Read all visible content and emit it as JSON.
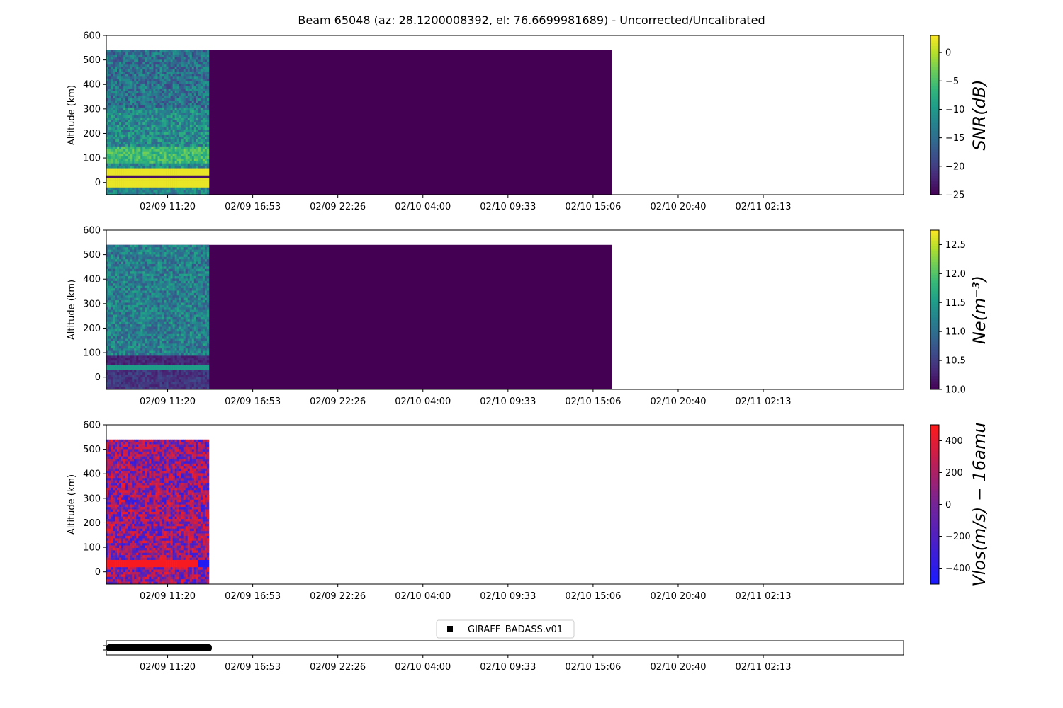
{
  "chart_data": {
    "type": "heatmap",
    "title": "Beam 65048 (az: 28.1200008392, el: 76.6699981689) - Uncorrected/Uncalibrated",
    "x_ticks": [
      "02/09 11:20",
      "02/09 16:53",
      "02/09 22:26",
      "02/10 04:00",
      "02/10 09:33",
      "02/10 15:06",
      "02/10 20:40",
      "02/11 02:13"
    ],
    "x_range_hours": [
      0,
      52
    ],
    "data_extent": {
      "start_hours": 0,
      "end_hours": 33,
      "measured_end_hours": 6.7,
      "altitude_km": [
        -50,
        540
      ]
    },
    "panels": [
      {
        "name": "snr",
        "ylabel": "Altitude (km)",
        "ylim": [
          -50,
          600
        ],
        "yticks": [
          "0",
          "100",
          "200",
          "300",
          "400",
          "500",
          "600"
        ],
        "colorbar_label": "SNR(dB)",
        "colorbar_range": [
          -25,
          3
        ],
        "colorbar_ticks": [
          "0",
          "−5",
          "−10",
          "−15",
          "−20",
          "−25"
        ],
        "colormap": "viridis"
      },
      {
        "name": "ne",
        "ylabel": "Altitude (km)",
        "ylim": [
          -50,
          600
        ],
        "yticks": [
          "0",
          "100",
          "200",
          "300",
          "400",
          "500",
          "600"
        ],
        "colorbar_label": "Ne(m⁻³)",
        "colorbar_range": [
          10.0,
          12.75
        ],
        "colorbar_ticks": [
          "12.5",
          "12.0",
          "11.5",
          "11.0",
          "10.5",
          "10.0"
        ],
        "colormap": "viridis"
      },
      {
        "name": "vlos",
        "ylabel": "Altitude (km)",
        "ylim": [
          -50,
          600
        ],
        "yticks": [
          "0",
          "100",
          "200",
          "300",
          "400",
          "500",
          "600"
        ],
        "colorbar_label": "Vlos(m/s) − 16amu",
        "colorbar_range": [
          -500,
          500
        ],
        "colorbar_ticks": [
          "400",
          "200",
          "0",
          "−200",
          "−400"
        ],
        "colormap": "bwr"
      }
    ],
    "legend": {
      "entries": [
        "GIRAFF_BADASS.v01"
      ],
      "placement": "above bottom strip",
      "marker_color": "#000000"
    },
    "colors": {
      "viridis_dark": "#440154",
      "viridis_yellow": "#fde725",
      "vlos_red": "#ff1a1a",
      "vlos_blue": "#1a1aff"
    }
  }
}
